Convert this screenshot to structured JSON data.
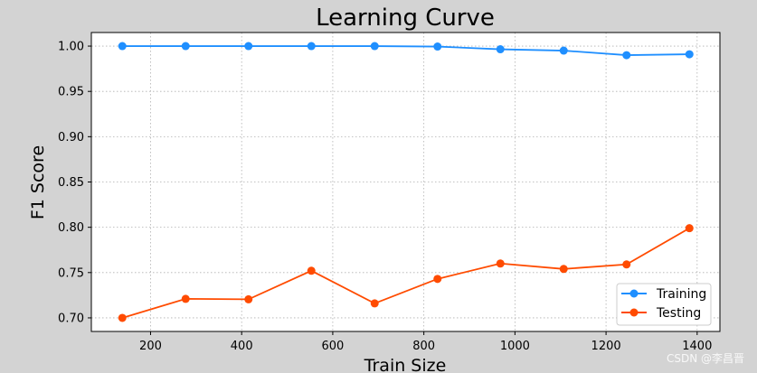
{
  "chart_data": {
    "type": "line",
    "title": "Learning Curve",
    "xlabel": "Train Size",
    "ylabel": "F1 Score",
    "xlim": [
      70,
      1450
    ],
    "ylim": [
      0.685,
      1.015
    ],
    "x_ticks": [
      200,
      400,
      600,
      800,
      1000,
      1200,
      1400
    ],
    "y_ticks": [
      0.7,
      0.75,
      0.8,
      0.85,
      0.9,
      0.95,
      1.0
    ],
    "grid": true,
    "legend_position": "bottom-right",
    "x": [
      138,
      277,
      415,
      553,
      692,
      830,
      968,
      1107,
      1245,
      1383
    ],
    "series": [
      {
        "name": "Training",
        "color": "#1f8fff",
        "values": [
          1.0,
          1.0,
          1.0,
          1.0,
          1.0,
          0.9995,
          0.9965,
          0.995,
          0.99,
          0.991
        ]
      },
      {
        "name": "Testing",
        "color": "#ff4b00",
        "values": [
          0.7,
          0.721,
          0.7205,
          0.752,
          0.716,
          0.743,
          0.76,
          0.754,
          0.759,
          0.799
        ]
      }
    ]
  },
  "watermark": "CSDN @李昌晋"
}
